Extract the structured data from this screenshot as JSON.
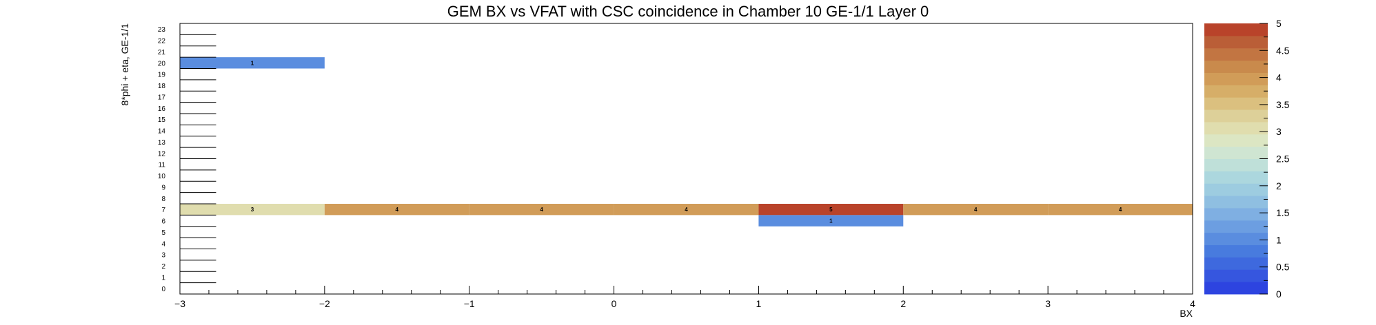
{
  "chart_data": {
    "type": "heatmap",
    "title": "GEM BX vs VFAT with CSC coincidence in Chamber 10 GE-1/1 Layer 0",
    "xlabel": "BX",
    "ylabel": "8*phi + eta, GE-1/1",
    "xlim": [
      -3,
      4
    ],
    "ylim": [
      0,
      24
    ],
    "x_ticks": [
      "−3",
      "−2",
      "−1",
      "0",
      "1",
      "2",
      "3",
      "4"
    ],
    "y_ticks": [
      "0",
      "1",
      "2",
      "3",
      "4",
      "5",
      "6",
      "7",
      "8",
      "9",
      "10",
      "11",
      "12",
      "13",
      "14",
      "15",
      "16",
      "17",
      "18",
      "19",
      "20",
      "21",
      "22",
      "23"
    ],
    "x_bins": [
      -3,
      -2,
      -1,
      0,
      1,
      2,
      3,
      4
    ],
    "cells": [
      {
        "x0": -3,
        "x1": -2,
        "y": 20,
        "value": 1
      },
      {
        "x0": -3,
        "x1": -2,
        "y": 7,
        "value": 3
      },
      {
        "x0": -2,
        "x1": -1,
        "y": 7,
        "value": 4
      },
      {
        "x0": -1,
        "x1": 0,
        "y": 7,
        "value": 4
      },
      {
        "x0": 0,
        "x1": 1,
        "y": 7,
        "value": 4
      },
      {
        "x0": 1,
        "x1": 2,
        "y": 7,
        "value": 5
      },
      {
        "x0": 2,
        "x1": 3,
        "y": 7,
        "value": 4
      },
      {
        "x0": 3,
        "x1": 4,
        "y": 7,
        "value": 4
      },
      {
        "x0": 1,
        "x1": 2,
        "y": 6,
        "value": 1
      }
    ],
    "colorbar": {
      "zlim": [
        0,
        5
      ],
      "tick_labels": [
        "0",
        "0.5",
        "1",
        "1.5",
        "2",
        "2.5",
        "3",
        "3.5",
        "4",
        "4.5",
        "5"
      ],
      "colors": [
        "#2d44e0",
        "#3656df",
        "#3e69de",
        "#487bde",
        "#5a8ddf",
        "#6c9ee1",
        "#7fafe2",
        "#8fbfe1",
        "#9dcce0",
        "#acd7de",
        "#bfe0d9",
        "#cfe5d2",
        "#dce6c3",
        "#e0ddae",
        "#ddd099",
        "#dbc07f",
        "#d6ae68",
        "#d19c58",
        "#c98a4c",
        "#c27542",
        "#ba5e37",
        "#b9432a"
      ]
    }
  }
}
